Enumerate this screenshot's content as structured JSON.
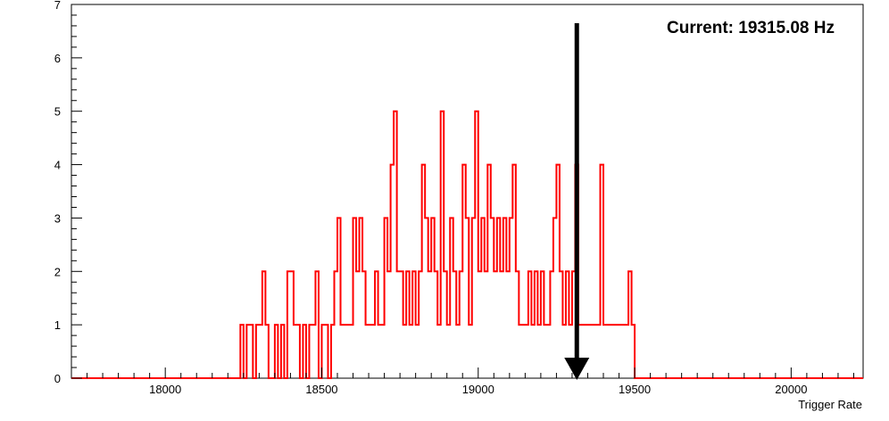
{
  "chart_data": {
    "type": "histogram",
    "xlabel": "Trigger Rate",
    "ylabel": "",
    "xlim": [
      17700,
      20230
    ],
    "ylim": [
      0,
      7
    ],
    "x_ticks": [
      18000,
      18500,
      19000,
      19500,
      20000
    ],
    "y_ticks": [
      0,
      1,
      2,
      3,
      4,
      5,
      6,
      7
    ],
    "grid": false,
    "series_color": "#ff0000",
    "bin_width": 10,
    "bins": [
      [
        18240,
        1
      ],
      [
        18260,
        1
      ],
      [
        18270,
        1
      ],
      [
        18290,
        1
      ],
      [
        18300,
        1
      ],
      [
        18310,
        2
      ],
      [
        18320,
        1
      ],
      [
        18350,
        1
      ],
      [
        18370,
        1
      ],
      [
        18390,
        2
      ],
      [
        18400,
        2
      ],
      [
        18410,
        1
      ],
      [
        18420,
        1
      ],
      [
        18440,
        1
      ],
      [
        18460,
        1
      ],
      [
        18470,
        1
      ],
      [
        18480,
        2
      ],
      [
        18500,
        1
      ],
      [
        18510,
        1
      ],
      [
        18530,
        1
      ],
      [
        18540,
        2
      ],
      [
        18550,
        3
      ],
      [
        18560,
        1
      ],
      [
        18570,
        1
      ],
      [
        18580,
        1
      ],
      [
        18590,
        1
      ],
      [
        18600,
        3
      ],
      [
        18610,
        2
      ],
      [
        18620,
        3
      ],
      [
        18630,
        2
      ],
      [
        18640,
        1
      ],
      [
        18650,
        1
      ],
      [
        18660,
        1
      ],
      [
        18670,
        2
      ],
      [
        18680,
        1
      ],
      [
        18690,
        1
      ],
      [
        18700,
        3
      ],
      [
        18710,
        2
      ],
      [
        18720,
        4
      ],
      [
        18730,
        5
      ],
      [
        18740,
        2
      ],
      [
        18750,
        2
      ],
      [
        18760,
        1
      ],
      [
        18770,
        2
      ],
      [
        18780,
        1
      ],
      [
        18790,
        2
      ],
      [
        18800,
        1
      ],
      [
        18810,
        2
      ],
      [
        18820,
        4
      ],
      [
        18830,
        3
      ],
      [
        18840,
        2
      ],
      [
        18850,
        3
      ],
      [
        18860,
        2
      ],
      [
        18870,
        1
      ],
      [
        18880,
        5
      ],
      [
        18890,
        2
      ],
      [
        18900,
        1
      ],
      [
        18910,
        3
      ],
      [
        18920,
        2
      ],
      [
        18930,
        1
      ],
      [
        18940,
        2
      ],
      [
        18950,
        4
      ],
      [
        18960,
        3
      ],
      [
        18970,
        1
      ],
      [
        18980,
        3
      ],
      [
        18990,
        5
      ],
      [
        19000,
        2
      ],
      [
        19010,
        3
      ],
      [
        19020,
        2
      ],
      [
        19030,
        4
      ],
      [
        19040,
        3
      ],
      [
        19050,
        2
      ],
      [
        19060,
        3
      ],
      [
        19070,
        2
      ],
      [
        19080,
        3
      ],
      [
        19090,
        2
      ],
      [
        19100,
        3
      ],
      [
        19110,
        4
      ],
      [
        19120,
        2
      ],
      [
        19130,
        1
      ],
      [
        19140,
        1
      ],
      [
        19150,
        1
      ],
      [
        19160,
        2
      ],
      [
        19170,
        1
      ],
      [
        19180,
        2
      ],
      [
        19190,
        1
      ],
      [
        19200,
        2
      ],
      [
        19210,
        1
      ],
      [
        19220,
        1
      ],
      [
        19230,
        2
      ],
      [
        19240,
        3
      ],
      [
        19250,
        4
      ],
      [
        19260,
        2
      ],
      [
        19270,
        1
      ],
      [
        19280,
        2
      ],
      [
        19290,
        1
      ],
      [
        19300,
        2
      ],
      [
        19310,
        4
      ],
      [
        19320,
        1
      ],
      [
        19330,
        1
      ],
      [
        19340,
        1
      ],
      [
        19350,
        1
      ],
      [
        19360,
        1
      ],
      [
        19370,
        1
      ],
      [
        19380,
        1
      ],
      [
        19390,
        4
      ],
      [
        19400,
        1
      ],
      [
        19410,
        1
      ],
      [
        19420,
        1
      ],
      [
        19430,
        1
      ],
      [
        19440,
        1
      ],
      [
        19450,
        1
      ],
      [
        19460,
        1
      ],
      [
        19470,
        1
      ],
      [
        19480,
        2
      ],
      [
        19490,
        1
      ]
    ],
    "annotation": {
      "label": "Current: 19315.08 Hz",
      "marker_value": 19315.08,
      "marker_type": "down-arrow"
    }
  }
}
